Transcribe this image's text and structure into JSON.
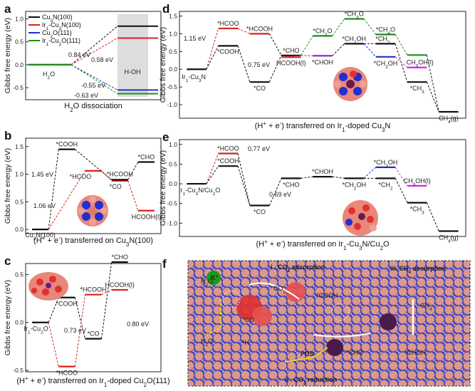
{
  "chart_data": [
    {
      "panel": "a",
      "type": "line",
      "xlabel": "H$_2$O dissociation",
      "ylabel": "Gibbs free energy (eV)",
      "ylim": [
        -0.7,
        1.1
      ],
      "yticks": [
        "1.0",
        "0.5",
        "0.0",
        "-0.5"
      ],
      "legend": [
        "Cu3N(100)",
        "Ir1-Cu3N(100)",
        "Cu2O(111)",
        "Ir1-Cu2O(111)"
      ],
      "states": [
        "H2O",
        "H-OH"
      ],
      "series": [
        {
          "name": "Cu3N(100)",
          "color": "#111111",
          "values": [
            0,
            0.84
          ]
        },
        {
          "name": "Ir1-Cu3N(100)",
          "color": "#d92020",
          "values": [
            0,
            0.58
          ]
        },
        {
          "name": "Cu2O(111)",
          "color": "#1f2fd0",
          "values": [
            0,
            -0.55
          ]
        },
        {
          "name": "Ir1-Cu2O(111)",
          "color": "#1a8f1a",
          "values": [
            0,
            -0.63
          ]
        }
      ],
      "annotations": [
        "0.84 eV",
        "0.58 eV",
        "-0.55 eV",
        "-0.63 eV",
        "H$_2$O",
        "H-OH"
      ]
    },
    {
      "panel": "b",
      "type": "line",
      "xlabel": "(H$^+$ + e$^-$) transferred on Cu$_3$N(100)",
      "ylabel": "Gibbs free energy (eV)",
      "ylim": [
        -0.05,
        1.6
      ],
      "yticks": [
        "1.5",
        "1.0",
        "0.5",
        "0.0"
      ],
      "series": [
        {
          "color": "#111111",
          "states": [
            "Cu3N(100)",
            "*COOH",
            "*HCOOH",
            "*CHO"
          ],
          "values": [
            0,
            1.45,
            0.9,
            1.22
          ]
        },
        {
          "color": "#d92020",
          "states": [
            "*HCOO",
            "*CO",
            "HCOOH(l)"
          ],
          "values": [
            1.06,
            0.88,
            0.34
          ]
        }
      ],
      "annotations": [
        "1.45 eV",
        "1.06 eV",
        "Cu$_3$N(100)",
        "*COOH",
        "*HCOO",
        "*HCOOH",
        "*CO",
        "*CHO",
        "HCOOH(l)"
      ]
    },
    {
      "panel": "c",
      "type": "line",
      "xlabel": "(H$^+$ + e$^-$) transferred on Ir$_1$-doped Cu$_2$O(111)",
      "ylabel": "Gibbs free energy (eV)",
      "ylim": [
        -0.5,
        0.6
      ],
      "yticks": [
        "0.5",
        "0.0",
        "-0.5"
      ],
      "series": [
        {
          "color": "#111111",
          "states": [
            "Ir1-Cu2O",
            "*COOH",
            "*CO",
            "*CHO"
          ],
          "values": [
            0,
            0.26,
            -0.17,
            0.63
          ]
        },
        {
          "color": "#d92020",
          "states": [
            "*HCOO",
            "*HCOOH",
            "HCOOH(l)"
          ],
          "values": [
            -0.46,
            0.29,
            0.34
          ]
        }
      ],
      "annotations": [
        "0.73 eV",
        "0.80 eV",
        "Ir$_1$-Cu$_2$O",
        "*COOH",
        "*HCOO",
        "*HCOOH",
        "*CO",
        "*CHO",
        "HCOOH(l)"
      ]
    },
    {
      "panel": "d",
      "type": "line",
      "xlabel": "(H$^+$ + e$^-$) transferred on Ir$_1$-doped Cu$_3$N",
      "ylabel": "Gibbs free energy (eV)",
      "ylim": [
        -1.3,
        1.55
      ],
      "yticks": [
        "1.5",
        "1.0",
        "0.5",
        "0.0",
        "-0.5",
        "-1.0"
      ],
      "series": [
        {
          "color": "#111111",
          "states": [
            "Ir1-Cu3N",
            "*COOH",
            "*CO",
            "*CHO",
            "*CH2OH",
            "*CH2",
            "*CH3",
            "CH4(g)"
          ],
          "values": [
            0,
            0.66,
            -0.36,
            0.39,
            0.72,
            0.72,
            -0.36,
            -1.2
          ]
        },
        {
          "color": "#d92020",
          "states": [
            "*HCOO",
            "*HCOOH",
            "HCOOH(l)"
          ],
          "values": [
            1.15,
            1.0,
            0.34
          ]
        },
        {
          "color": "#8a1ad9",
          "states": [
            "*CHOH"
          ],
          "values": [
            0.38
          ]
        },
        {
          "color": "#1a8f1a",
          "states": [
            "*CH2O",
            "*CH3O",
            "*CH4O",
            "*CH3OH"
          ],
          "values": [
            0.94,
            1.42,
            0.98,
            0.4
          ]
        },
        {
          "color": "#1f2fd0",
          "states": [
            "*CH3OH"
          ],
          "values": [
            0.35
          ]
        },
        {
          "color": "#e020e0",
          "states": [
            "CH3OH(l)"
          ],
          "values": [
            0.05
          ]
        }
      ],
      "annotations": [
        "1.15 eV",
        "0.75 eV",
        "*HCOO",
        "*COOH",
        "*HCOOH",
        "*CO",
        "*CHO",
        "HCOOH(l)",
        "*CHOH",
        "*CH$_2$O",
        "*CH$_3$O",
        "*CH$_2$OH",
        "*CH$_4$O",
        "*CH$_3$OH",
        "CH$_3$OH(l)",
        "*CH$_2$",
        "*CH$_3$",
        "CH$_4$(g)",
        "Ir$_1$-Cu$_3$N"
      ]
    },
    {
      "panel": "e",
      "type": "line",
      "xlabel": "(H$^+$ + e$^-$) transferred on Ir$_1$-Cu$_3$N/Cu$_2$O",
      "ylabel": "Gibbs free energy (eV)",
      "ylim": [
        -1.3,
        1.05
      ],
      "yticks": [
        "1.0",
        "0.5",
        "0.0",
        "-0.5",
        "-1.0"
      ],
      "series": [
        {
          "color": "#111111",
          "states": [
            "Ir1-Cu3N/Cu2O",
            "*COOH",
            "*CO",
            "*CHO",
            "*CHOH",
            "*CH2OH",
            "*CH2",
            "*CH3",
            "CH4(g)"
          ],
          "values": [
            0,
            0.45,
            -0.55,
            0.14,
            0.18,
            0.14,
            0.14,
            -0.48,
            -1.2
          ]
        },
        {
          "color": "#d92020",
          "states": [
            "*HCOO"
          ],
          "values": [
            0.77
          ]
        },
        {
          "color": "#1f2fd0",
          "states": [
            "*CH3OH"
          ],
          "values": [
            0.42
          ]
        },
        {
          "color": "#e020e0",
          "states": [
            "CH3OH(l)"
          ],
          "values": [
            -0.05
          ]
        }
      ],
      "annotations": [
        "0.77 eV",
        "0.69 eV",
        "*HCOO",
        "*COOH",
        "*CO",
        "*CHO",
        "*CHOH",
        "*CH$_2$OH",
        "*CH$_2$",
        "*CH$_3$",
        "*CH$_3$OH",
        "CH$_3$OH(l)",
        "CH$_4$(g)",
        "Ir$_1$-Cu$_3$N/Cu$_2$O"
      ]
    }
  ],
  "panel_f": {
    "labels": [
      "i . CO$_2$ adsorption",
      "ii . CO$_2$ reduction",
      "iii. CH$_4$ desorption",
      "H$_2$O",
      "K$^+$",
      "CO$_2$",
      "*COOH",
      "*CO",
      "*H",
      "H$_2$O",
      "PDS",
      "*CHO",
      "*CHOH",
      "CH$_4$"
    ]
  },
  "panel_letters": [
    "a",
    "b",
    "c",
    "d",
    "e",
    "f"
  ],
  "colors": {
    "black": "#111111",
    "red": "#d92020",
    "blue": "#1f2fd0",
    "green": "#1a8f1a",
    "purple": "#8a1ad9",
    "magenta": "#e020e0",
    "bar": "#dddddd"
  }
}
